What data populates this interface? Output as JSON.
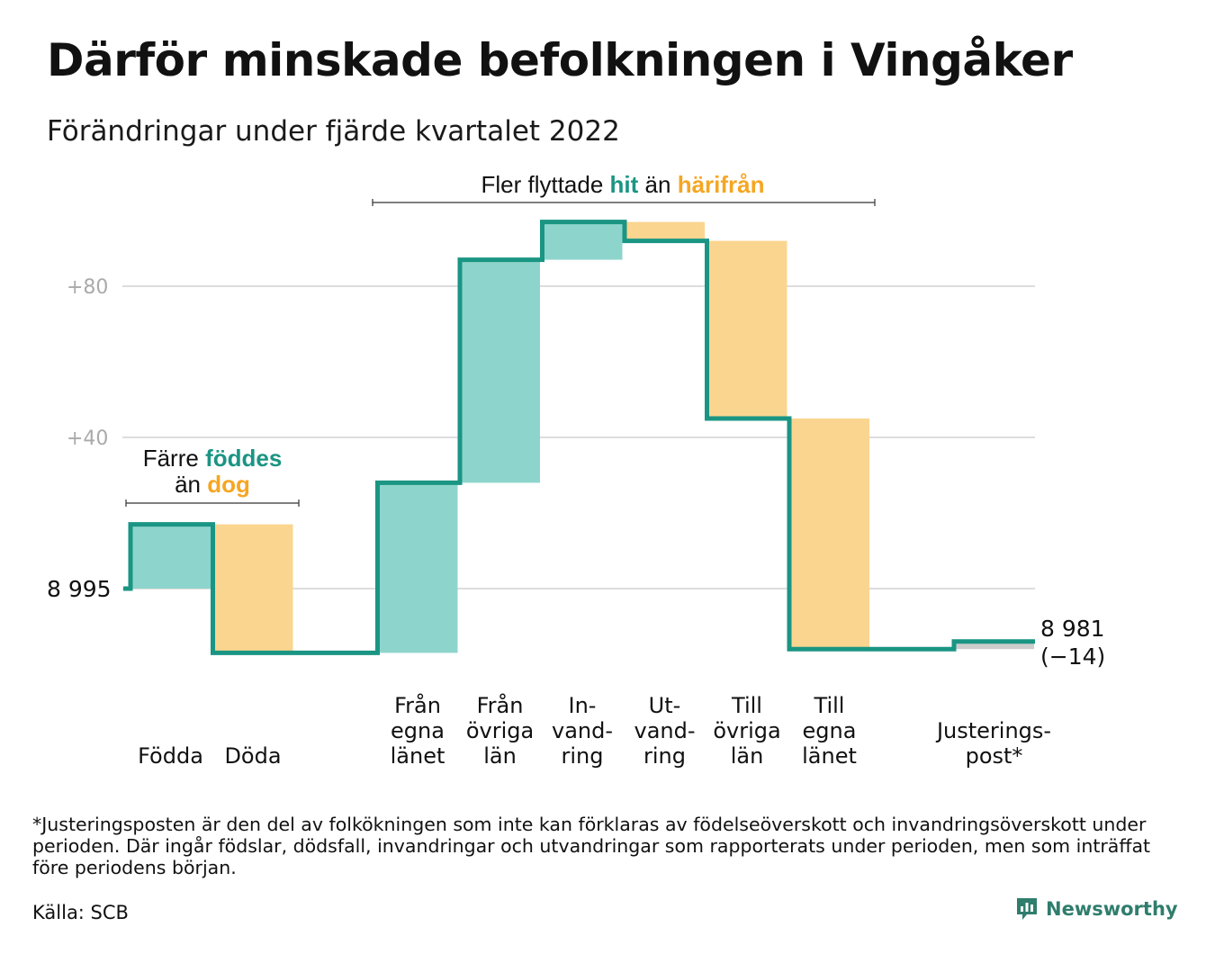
{
  "title": "Därför minskade befolkningen i Vingåker",
  "subtitle": "Förändringar under fjärde kvartalet 2022",
  "annotations": {
    "births_line1": "Färre",
    "births_green": "föddes",
    "births_line2_pre": "än",
    "births_orange": "dog",
    "migration_pre": "Fler flyttade",
    "migration_green": "hit",
    "migration_mid": "än",
    "migration_orange": "härifrån"
  },
  "end_value": "8 981",
  "end_change": "(−14)",
  "footnote": "*Justeringsposten är den del av folkökningen som inte kan förklaras av födelseöverskott och invandringsöverskott under perioden. Där ingår födslar, dödsfall, invandringar och utvandringar som rapporterats under perioden, men som inträffat före periodens början.",
  "source": "Källa: SCB",
  "brand": "Newsworthy",
  "colors": {
    "increase": "#8dd5cc",
    "decrease": "#fad590",
    "adjustment": "#cccccc",
    "line": "#1a9583",
    "accent_green": "#1a9583",
    "accent_orange": "#f5a623",
    "grid": "#dddddd",
    "tick_label": "#aaaaaa"
  },
  "chart_data": {
    "type": "waterfall",
    "start_value": 8995,
    "start_label": "8 995",
    "end_value": 8981,
    "net_change": -14,
    "y_ticks": [
      {
        "value": 40,
        "label": "+40"
      },
      {
        "value": 80,
        "label": "+80"
      }
    ],
    "steps": [
      {
        "label": [
          "Födda"
        ],
        "value": 17,
        "kind": "increase"
      },
      {
        "label": [
          "Döda"
        ],
        "value": -34,
        "kind": "decrease"
      },
      {
        "label": [
          "Från",
          "egna",
          "länet"
        ],
        "value": 45,
        "kind": "increase"
      },
      {
        "label": [
          "Från",
          "övriga",
          "län"
        ],
        "value": 59,
        "kind": "increase"
      },
      {
        "label": [
          "In-",
          "vand-",
          "ring"
        ],
        "value": 10,
        "kind": "increase"
      },
      {
        "label": [
          "Ut-",
          "vand-",
          "ring"
        ],
        "value": -5,
        "kind": "decrease"
      },
      {
        "label": [
          "Till",
          "övriga",
          "län"
        ],
        "value": -47,
        "kind": "decrease"
      },
      {
        "label": [
          "Till",
          "egna",
          "länet"
        ],
        "value": -61,
        "kind": "decrease"
      },
      {
        "label": [
          "Justerings-",
          "post*"
        ],
        "value": 2,
        "kind": "adjustment"
      }
    ]
  }
}
